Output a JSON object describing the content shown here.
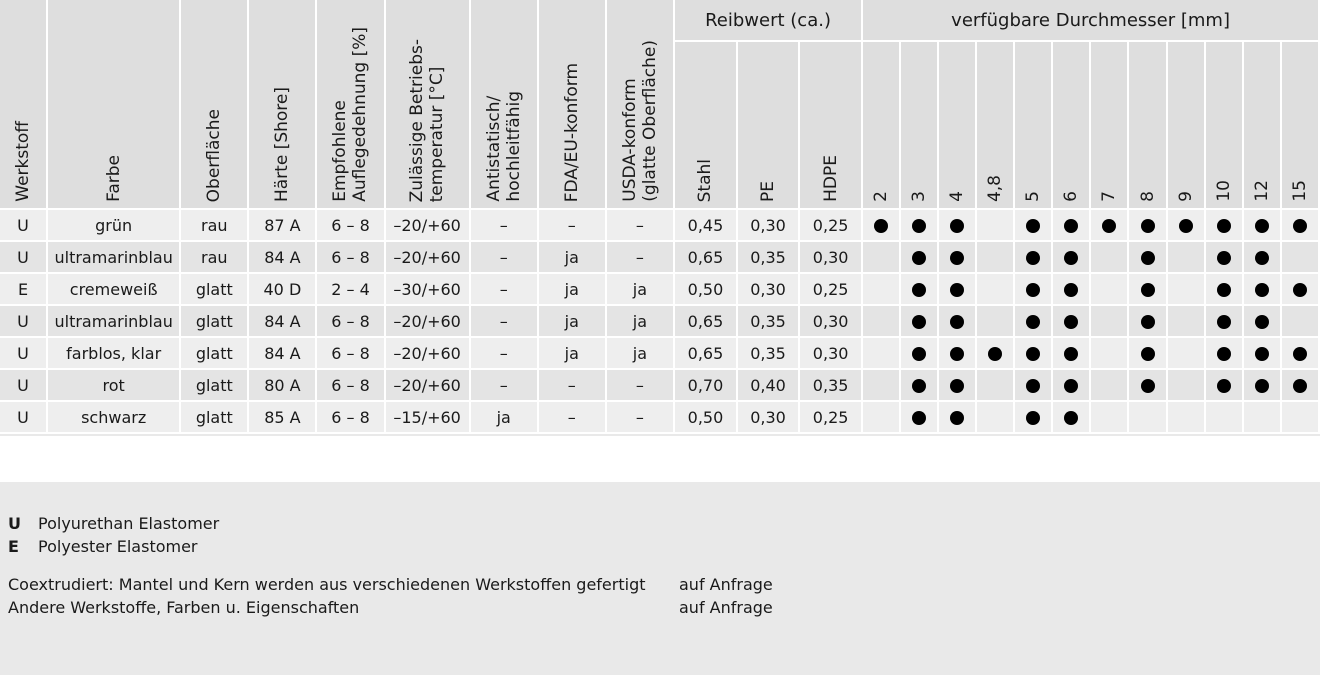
{
  "headers": {
    "werkstoff": "Werkstoff",
    "farbe": "Farbe",
    "oberflaeche": "Oberfläche",
    "haerte": "Härte [Shore]",
    "auflegedehnung": "Empfohlene\nAuflegedehnung [%]",
    "temperatur": "Zulässige Betriebs-\ntemperatur [°C]",
    "antistatisch": "Antistatisch/\nhochleitfähig",
    "fda": "FDA/EU-konform",
    "usda": "USDA-konform\n(glatte Oberfläche)",
    "reibwert_group": "Reibwert (ca.)",
    "reibwert_cols": [
      "Stahl",
      "PE",
      "HDPE"
    ],
    "durchmesser_group": "verfügbare Durchmesser [mm]",
    "durchmesser_cols": [
      "2",
      "3",
      "4",
      "4,8",
      "5",
      "6",
      "7",
      "8",
      "9",
      "10",
      "12",
      "15"
    ]
  },
  "rows": [
    {
      "werkstoff": "U",
      "farbe": "grün",
      "oberflaeche": "rau",
      "haerte": "87 A",
      "dehnung": "6 – 8",
      "temp": "–20/+60",
      "antistatisch": "–",
      "fda": "–",
      "usda": "–",
      "stahl": "0,45",
      "pe": "0,30",
      "hdpe": "0,25",
      "d": [
        1,
        1,
        1,
        0,
        1,
        1,
        1,
        1,
        1,
        1,
        1,
        1
      ]
    },
    {
      "werkstoff": "U",
      "farbe": "ultramarinblau",
      "oberflaeche": "rau",
      "haerte": "84 A",
      "dehnung": "6 – 8",
      "temp": "–20/+60",
      "antistatisch": "–",
      "fda": "ja",
      "usda": "–",
      "stahl": "0,65",
      "pe": "0,35",
      "hdpe": "0,30",
      "d": [
        0,
        1,
        1,
        0,
        1,
        1,
        0,
        1,
        0,
        1,
        1,
        0
      ]
    },
    {
      "werkstoff": "E",
      "farbe": "cremeweiß",
      "oberflaeche": "glatt",
      "haerte": "40 D",
      "dehnung": "2 – 4",
      "temp": "–30/+60",
      "antistatisch": "–",
      "fda": "ja",
      "usda": "ja",
      "stahl": "0,50",
      "pe": "0,30",
      "hdpe": "0,25",
      "d": [
        0,
        1,
        1,
        0,
        1,
        1,
        0,
        1,
        0,
        1,
        1,
        1
      ]
    },
    {
      "werkstoff": "U",
      "farbe": "ultramarinblau",
      "oberflaeche": "glatt",
      "haerte": "84 A",
      "dehnung": "6 – 8",
      "temp": "–20/+60",
      "antistatisch": "–",
      "fda": "ja",
      "usda": "ja",
      "stahl": "0,65",
      "pe": "0,35",
      "hdpe": "0,30",
      "d": [
        0,
        1,
        1,
        0,
        1,
        1,
        0,
        1,
        0,
        1,
        1,
        0
      ]
    },
    {
      "werkstoff": "U",
      "farbe": "farblos, klar",
      "oberflaeche": "glatt",
      "haerte": "84 A",
      "dehnung": "6 – 8",
      "temp": "–20/+60",
      "antistatisch": "–",
      "fda": "ja",
      "usda": "ja",
      "stahl": "0,65",
      "pe": "0,35",
      "hdpe": "0,30",
      "d": [
        0,
        1,
        1,
        1,
        1,
        1,
        0,
        1,
        0,
        1,
        1,
        1
      ]
    },
    {
      "werkstoff": "U",
      "farbe": "rot",
      "oberflaeche": "glatt",
      "haerte": "80 A",
      "dehnung": "6 – 8",
      "temp": "–20/+60",
      "antistatisch": "–",
      "fda": "–",
      "usda": "–",
      "stahl": "0,70",
      "pe": "0,40",
      "hdpe": "0,35",
      "d": [
        0,
        1,
        1,
        0,
        1,
        1,
        0,
        1,
        0,
        1,
        1,
        1
      ]
    },
    {
      "werkstoff": "U",
      "farbe": "schwarz",
      "oberflaeche": "glatt",
      "haerte": "85 A",
      "dehnung": "6 – 8",
      "temp": "–15/+60",
      "antistatisch": "ja",
      "fda": "–",
      "usda": "–",
      "stahl": "0,50",
      "pe": "0,30",
      "hdpe": "0,25",
      "d": [
        0,
        1,
        1,
        0,
        1,
        1,
        0,
        0,
        0,
        0,
        0,
        0
      ]
    }
  ],
  "legend": [
    {
      "abbr": "U",
      "text": "Polyurethan Elastomer"
    },
    {
      "abbr": "E",
      "text": "Polyester Elastomer"
    }
  ],
  "notes": [
    {
      "text": "Coextrudiert: Mantel und Kern werden aus verschiedenen Werkstoffen gefertigt",
      "value": "auf Anfrage"
    },
    {
      "text": "Andere Werkstoffe, Farben u. Eigenschaften",
      "value": "auf Anfrage"
    }
  ]
}
